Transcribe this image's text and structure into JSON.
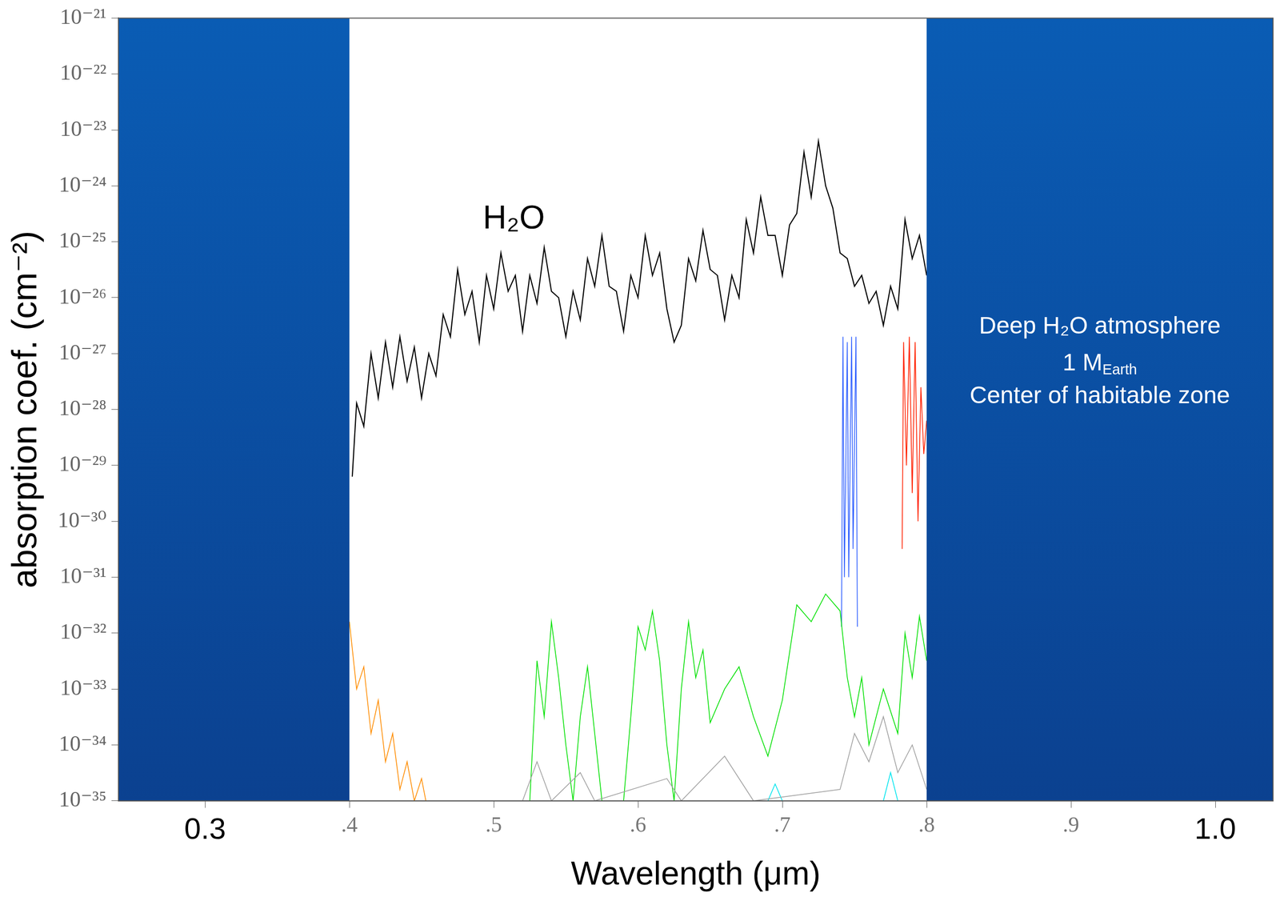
{
  "chart_data": {
    "type": "line",
    "x_label": "Wavelength (μm)",
    "y_label": "absorption coef. (cm⁻²)",
    "log": "y",
    "grid": false,
    "xlim": [
      0.24,
      1.04
    ],
    "xticks": [
      0.3,
      {
        "value": 0.4,
        "label": ".4"
      },
      {
        "value": 0.5,
        "label": ".5"
      },
      {
        "value": 0.6,
        "label": ".6"
      },
      {
        "value": 0.7,
        "label": ".7"
      },
      {
        "value": 0.8,
        "label": ".8"
      },
      {
        "value": 0.9,
        "label": ".9"
      },
      {
        "value": 1,
        "label": "1.0"
      }
    ],
    "ylim": [
      1e-35,
      1e-21
    ],
    "yticks": [
      {
        "value": 1e-35,
        "label": "10⁻³⁵"
      },
      {
        "value": 1e-34,
        "label": "10⁻³⁴"
      },
      {
        "value": 1e-33,
        "label": "10⁻³³"
      },
      {
        "value": 1e-32,
        "label": "10⁻³²"
      },
      {
        "value": 1e-31,
        "label": "10⁻³¹"
      },
      {
        "value": 1e-30,
        "label": "10⁻³⁰"
      },
      {
        "value": 1e-29,
        "label": "10⁻²⁹"
      },
      {
        "value": 1e-28,
        "label": "10⁻²⁸"
      },
      {
        "value": 1e-27,
        "label": "10⁻²⁷"
      },
      {
        "value": 1e-26,
        "label": "10⁻²⁶"
      },
      {
        "value": 1e-25,
        "label": "10⁻²⁵"
      },
      {
        "value": 1e-24,
        "label": "10⁻²⁴"
      },
      {
        "value": 1e-23,
        "label": "10⁻²³"
      },
      {
        "value": 1e-22,
        "label": "10⁻²²"
      },
      {
        "value": 1e-21,
        "label": "10⁻²¹"
      }
    ],
    "series": [
      {
        "color": "#a0a0a0",
        "x": [
          0.52,
          0.53,
          0.54,
          0.56,
          0.57,
          0.62,
          0.63,
          0.66,
          0.68,
          0.74,
          0.75,
          0.76,
          0.77,
          0.78,
          0.79,
          0.8
        ],
        "values": [
          1e-35,
          5e-35,
          1e-35,
          3.2e-35,
          1e-35,
          2.5e-35,
          1e-35,
          6.3e-35,
          1e-35,
          1.6e-35,
          1.6e-34,
          5e-35,
          3.2e-34,
          3.2e-35,
          1e-34,
          1.6e-35
        ]
      },
      {
        "color": "#00e000",
        "x": [
          0.525,
          0.53,
          0.535,
          0.54,
          0.545,
          0.55,
          0.555,
          0.56,
          0.565,
          0.57,
          0.575,
          0.59,
          0.595,
          0.6,
          0.605,
          0.61,
          0.615,
          0.62,
          0.625,
          0.63,
          0.635,
          0.64,
          0.645,
          0.65,
          0.66,
          0.67,
          0.68,
          0.69,
          0.7,
          0.71,
          0.72,
          0.73,
          0.74,
          0.745,
          0.75,
          0.755,
          0.76,
          0.77,
          0.78,
          0.785,
          0.79,
          0.795,
          0.8
        ],
        "values": [
          1e-35,
          3.2e-33,
          3.2e-34,
          1.6e-32,
          1.6e-33,
          1e-34,
          1e-35,
          3.2e-34,
          2.5e-33,
          1.6e-34,
          1e-35,
          1e-35,
          3.2e-34,
          1.3e-32,
          5e-33,
          2.5e-32,
          3.2e-33,
          1e-34,
          1e-35,
          1e-33,
          1.6e-32,
          1.6e-33,
          5e-33,
          2.5e-34,
          1e-33,
          2.5e-33,
          3.2e-34,
          6.3e-35,
          6.3e-34,
          3.2e-32,
          1.6e-32,
          5e-32,
          2.5e-32,
          1.6e-33,
          3.2e-34,
          1.6e-33,
          1e-34,
          1e-33,
          1.6e-34,
          1e-32,
          1.6e-33,
          2e-32,
          3.2e-33
        ]
      },
      {
        "color": "#ff8c00",
        "x": [
          0.4,
          0.405,
          0.41,
          0.415,
          0.42,
          0.425,
          0.43,
          0.435,
          0.44,
          0.445,
          0.45,
          0.453
        ],
        "values": [
          1.6e-32,
          1e-33,
          2.5e-33,
          1.6e-34,
          6.3e-34,
          5e-35,
          1.6e-34,
          1.6e-35,
          5e-35,
          1e-35,
          2.5e-35,
          1e-35
        ]
      },
      {
        "color": "#00e5ee",
        "x": [
          0.69,
          0.695,
          0.7,
          0.735,
          0.77,
          0.775,
          0.78
        ],
        "values": [
          1e-35,
          2e-35,
          1e-35,
          null,
          1e-35,
          3.2e-35,
          1e-35
        ]
      },
      {
        "color": "#3060ff",
        "x": [
          0.741,
          0.742,
          0.743,
          0.745,
          0.746,
          0.748,
          0.749,
          0.751,
          0.752
        ],
        "values": [
          1.3e-32,
          2e-27,
          1e-31,
          1.6e-27,
          1e-31,
          2e-27,
          3.2e-31,
          2e-27,
          1.3e-32
        ]
      },
      {
        "color": "#ff2000",
        "x": [
          0.783,
          0.784,
          0.786,
          0.788,
          0.79,
          0.792,
          0.794,
          0.796,
          0.798,
          0.8
        ],
        "values": [
          3.2e-31,
          1.6e-27,
          1e-29,
          2e-27,
          3.2e-30,
          1.6e-27,
          1e-30,
          2.5e-28,
          1.6e-29,
          6.3e-29
        ]
      },
      {
        "color": "#000000",
        "x": [
          0.402,
          0.405,
          0.41,
          0.415,
          0.42,
          0.425,
          0.43,
          0.435,
          0.44,
          0.445,
          0.45,
          0.455,
          0.46,
          0.465,
          0.47,
          0.475,
          0.48,
          0.485,
          0.49,
          0.495,
          0.5,
          0.505,
          0.51,
          0.515,
          0.52,
          0.525,
          0.53,
          0.535,
          0.54,
          0.545,
          0.55,
          0.555,
          0.56,
          0.565,
          0.57,
          0.575,
          0.58,
          0.585,
          0.59,
          0.595,
          0.6,
          0.605,
          0.61,
          0.615,
          0.62,
          0.625,
          0.63,
          0.635,
          0.64,
          0.645,
          0.65,
          0.655,
          0.66,
          0.665,
          0.67,
          0.675,
          0.68,
          0.685,
          0.69,
          0.695,
          0.7,
          0.705,
          0.71,
          0.715,
          0.72,
          0.725,
          0.73,
          0.735,
          0.74,
          0.745,
          0.75,
          0.755,
          0.76,
          0.765,
          0.77,
          0.775,
          0.78,
          0.785,
          0.79,
          0.795,
          0.8
        ],
        "values": [
          6.3e-30,
          1.3e-28,
          5e-29,
          1e-27,
          1.6e-28,
          1.6e-27,
          2.5e-28,
          2e-27,
          3.2e-28,
          1.3e-27,
          1.6e-28,
          1e-27,
          4e-28,
          5e-27,
          2e-27,
          3.2e-26,
          5e-27,
          1.3e-26,
          1.6e-27,
          2.5e-26,
          6.3e-27,
          6.3e-26,
          1.3e-26,
          2.5e-26,
          2.5e-27,
          2.5e-26,
          7.9e-27,
          7.9e-26,
          1.3e-26,
          1e-26,
          2e-27,
          1.3e-26,
          4e-27,
          5e-26,
          1.6e-26,
          1.3e-25,
          1.6e-26,
          1.3e-26,
          2.5e-27,
          2.5e-26,
          1e-26,
          1.3e-25,
          2.5e-26,
          6.3e-26,
          6.3e-27,
          1.6e-27,
          3.2e-27,
          5e-26,
          2e-26,
          1.6e-25,
          3.2e-26,
          2.5e-26,
          4e-27,
          2.5e-26,
          1e-26,
          2.5e-25,
          6.3e-26,
          6.3e-25,
          1.3e-25,
          1.3e-25,
          2.5e-26,
          2e-25,
          3.2e-25,
          4e-24,
          6.3e-25,
          6.3e-24,
          1e-24,
          4e-25,
          6.3e-26,
          5e-26,
          1.6e-26,
          2.5e-26,
          7.9e-27,
          1.3e-26,
          3.2e-27,
          1.6e-26,
          6.3e-27,
          2.5e-25,
          5e-26,
          1.3e-25,
          2.5e-26
        ]
      }
    ],
    "bands": [
      {
        "x": [
          0.24,
          0.4
        ],
        "color": "#0a5cb4"
      },
      {
        "x": [
          0.8,
          1.04
        ],
        "color": "#0a5cb4"
      }
    ],
    "annotations": [
      {
        "text": "H₂O",
        "x": 0.514,
        "y": 2.5e-25,
        "color": "#000000"
      },
      {
        "text": "Deep H₂O atmosphere",
        "x": 0.92,
        "y": 3e-27,
        "color": "#ffffff"
      },
      {
        "text": "1 M",
        "subscript": "Earth",
        "x": 0.92,
        "y": 6.6e-28,
        "color": "#ffffff"
      },
      {
        "text": "Center of habitable zone",
        "x": 0.92,
        "y": 1.7e-28,
        "color": "#ffffff"
      }
    ]
  }
}
